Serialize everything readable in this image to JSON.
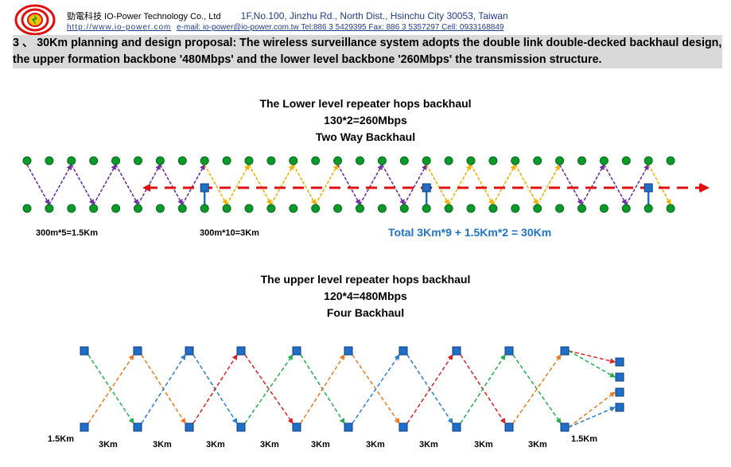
{
  "header": {
    "company": "勁電科技 IO-Power Technology Co., Ltd",
    "address": "1F,No.100, Jinzhu Rd., North Dist., Hsinchu City 30053, Taiwan",
    "website": "http://www.io-power.com",
    "contact": "e-mail: io-power@io-power.com.tw Tel:886 3 5429395 Fax: 886 3 5357297 Cell: 0933168849"
  },
  "heading": {
    "line1": "3 、 30Km planning and design proposal: The wireless surveillance system adopts the double link double-decked backhaul design,",
    "line2": "the upper formation backbone '480Mbps' and the lower level backbone '260Mbps' the transmission structure."
  },
  "lower": {
    "title": "The Lower level repeater hops backhaul",
    "formula": "130*2=260Mbps",
    "subtitle": "Two Way Backhaul",
    "label_left": "300m*5=1.5Km",
    "label_mid": "300m*10=3Km",
    "total": "Total 3Km*9 + 1.5Km*2 = 30Km"
  },
  "upper": {
    "title": "The upper level repeater hops backhaul",
    "formula": "120*4=480Mbps",
    "subtitle": "Four Backhaul",
    "distance_labels": [
      "1.5Km",
      "3Km",
      "3Km",
      "3Km",
      "3Km",
      "3Km",
      "3Km",
      "3Km",
      "3Km",
      "3Km",
      "1.5Km"
    ]
  },
  "colors": {
    "node_green": "#0a9a2a",
    "repeater_blue": "#1f6fc8",
    "purple_link": "#7030a0",
    "yellow_link": "#f2b200",
    "red_backbone": "#e01010",
    "green_link": "#22b04a",
    "orange_link": "#f07a20",
    "blue_link": "#2a7fd0",
    "red_link": "#e02020",
    "heading_bg": "#d9d9d9",
    "total_text": "#1f73c8"
  }
}
